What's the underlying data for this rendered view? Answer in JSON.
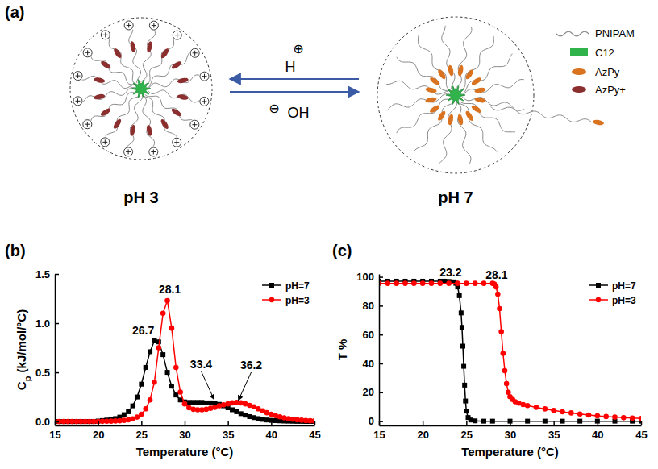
{
  "diagram": {
    "panel_label": "(a)",
    "states": [
      {
        "label": "pH 3"
      },
      {
        "label": "pH 7"
      }
    ],
    "acid": {
      "ion": "H",
      "charge": "⊕"
    },
    "base": {
      "ion": "OH",
      "charge": "⊖"
    },
    "legend": [
      {
        "label": "PNIPAM"
      },
      {
        "label": "C12"
      },
      {
        "label": "AzPy"
      },
      {
        "label": "AzPy+"
      }
    ]
  },
  "chart_data": [
    {
      "type": "line",
      "panel_label": "(b)",
      "xlabel": "Temperature (°C)",
      "ylabel": "Cp (kJ/mol/°C)",
      "x": [
        15,
        15.5,
        16,
        16.5,
        17,
        17.5,
        18,
        18.5,
        19,
        19.5,
        20,
        20.5,
        21,
        21.5,
        22,
        22.5,
        23,
        23.5,
        24,
        24.5,
        25,
        25.5,
        26,
        26.5,
        27,
        27.5,
        28,
        28.5,
        29,
        29.5,
        30,
        30.5,
        31,
        31.5,
        32,
        32.5,
        33,
        33.5,
        34,
        34.5,
        35,
        35.5,
        36,
        36.5,
        37,
        37.5,
        38,
        38.5,
        39,
        39.5,
        40,
        40.5,
        41,
        41.5,
        42,
        42.5,
        43,
        43.5,
        44,
        44.5,
        45
      ],
      "series": [
        {
          "name": "pH=7",
          "color": "#000000",
          "marker": "square",
          "values": [
            0,
            0,
            0,
            0,
            0,
            0,
            0,
            0,
            0,
            0,
            0.005,
            0.01,
            0.015,
            0.02,
            0.03,
            0.045,
            0.07,
            0.1,
            0.16,
            0.25,
            0.38,
            0.55,
            0.71,
            0.82,
            0.81,
            0.68,
            0.5,
            0.36,
            0.27,
            0.22,
            0.2,
            0.195,
            0.195,
            0.195,
            0.195,
            0.19,
            0.19,
            0.185,
            0.175,
            0.16,
            0.14,
            0.12,
            0.1,
            0.08,
            0.065,
            0.05,
            0.04,
            0.03,
            0.022,
            0.016,
            0.012,
            0.009,
            0.007,
            0.005,
            0.004,
            0.003,
            0.002,
            0.002,
            0.001,
            0.001,
            0.001
          ]
        },
        {
          "name": "pH=3",
          "color": "#ff0000",
          "marker": "circle",
          "values": [
            0,
            0,
            0,
            0,
            0,
            0,
            0,
            0,
            0,
            0,
            0,
            0.002,
            0.003,
            0.004,
            0.006,
            0.008,
            0.012,
            0.018,
            0.028,
            0.045,
            0.075,
            0.13,
            0.22,
            0.4,
            0.75,
            1.1,
            1.23,
            0.95,
            0.55,
            0.3,
            0.18,
            0.14,
            0.125,
            0.12,
            0.12,
            0.125,
            0.135,
            0.145,
            0.16,
            0.17,
            0.18,
            0.19,
            0.195,
            0.19,
            0.18,
            0.165,
            0.15,
            0.13,
            0.11,
            0.09,
            0.075,
            0.06,
            0.048,
            0.038,
            0.03,
            0.024,
            0.018,
            0.014,
            0.01,
            0.008,
            0.006
          ]
        }
      ],
      "xlim": [
        15,
        45
      ],
      "xticks": [
        15,
        20,
        25,
        30,
        35,
        40,
        45
      ],
      "ylim": [
        -0.04,
        1.5
      ],
      "yticks": [
        {
          "value": 0,
          "label": "0.0"
        },
        0.5,
        {
          "value": 1,
          "label": "1.0"
        },
        1.5
      ],
      "grid": false,
      "legend": "upper right",
      "annotations": [
        {
          "text": "26.7",
          "x": 26.7,
          "y": 0.82
        },
        {
          "text": "28.1",
          "x": 28.1,
          "y": 1.24
        },
        {
          "text": "33.4",
          "x": 33.4,
          "y": 0.2
        },
        {
          "text": "36.2",
          "x": 36.2,
          "y": 0.19
        }
      ]
    },
    {
      "type": "line",
      "panel_label": "(c)",
      "xlabel": "Temperature (°C)",
      "ylabel": "T %",
      "series": [
        {
          "name": "pH=7",
          "color": "#000000",
          "marker": "square",
          "x": [
            15,
            16,
            17,
            18,
            19,
            20,
            21,
            22,
            22.5,
            23,
            23.5,
            23.8,
            24,
            24.2,
            24.4,
            24.5,
            24.6,
            24.7,
            24.8,
            24.9,
            25,
            25.2,
            25.5,
            26,
            27,
            28,
            30,
            32,
            34,
            36,
            38,
            40,
            42,
            44,
            45
          ],
          "values": [
            97,
            97,
            97,
            97,
            97,
            97,
            97,
            97,
            97,
            96.8,
            96.5,
            95.5,
            93,
            87,
            75,
            65,
            52,
            38,
            25,
            14,
            7,
            2.5,
            0.8,
            0.2,
            0,
            0,
            0,
            0,
            0,
            0,
            0,
            0,
            0,
            0,
            0
          ]
        },
        {
          "name": "pH=3",
          "color": "#ff0000",
          "marker": "circle",
          "x": [
            15,
            16,
            17,
            18,
            19,
            20,
            21,
            22,
            23,
            24,
            25,
            26,
            27,
            28,
            28.2,
            28.4,
            28.6,
            28.8,
            29,
            29.2,
            29.4,
            29.6,
            29.8,
            30,
            30.3,
            30.6,
            31,
            31.5,
            32,
            33,
            34,
            35,
            36,
            37,
            38,
            39,
            40,
            41,
            42,
            43,
            44,
            45
          ],
          "values": [
            95.5,
            95.5,
            95.5,
            95.5,
            95.5,
            95.5,
            95.5,
            95.5,
            95.5,
            95.5,
            95.5,
            95.5,
            95.5,
            95.5,
            95,
            93,
            88,
            78,
            62,
            47,
            35,
            26,
            20,
            17,
            15,
            13.5,
            12.5,
            11.5,
            10.8,
            9.6,
            8.5,
            7.5,
            6.5,
            5.7,
            5,
            4.3,
            3.7,
            3.2,
            2.8,
            2.4,
            2.1,
            1.9
          ]
        }
      ],
      "xlim": [
        15,
        45
      ],
      "xticks": [
        15,
        20,
        25,
        30,
        35,
        40,
        45
      ],
      "ylim": [
        -3,
        102
      ],
      "yticks": [
        0,
        20,
        40,
        60,
        80,
        100
      ],
      "grid": false,
      "legend": "upper right",
      "annotations": [
        {
          "text": "23.2",
          "x": 23.2,
          "y": 97
        },
        {
          "text": "28.1",
          "x": 28.1,
          "y": 95.5
        }
      ]
    }
  ]
}
